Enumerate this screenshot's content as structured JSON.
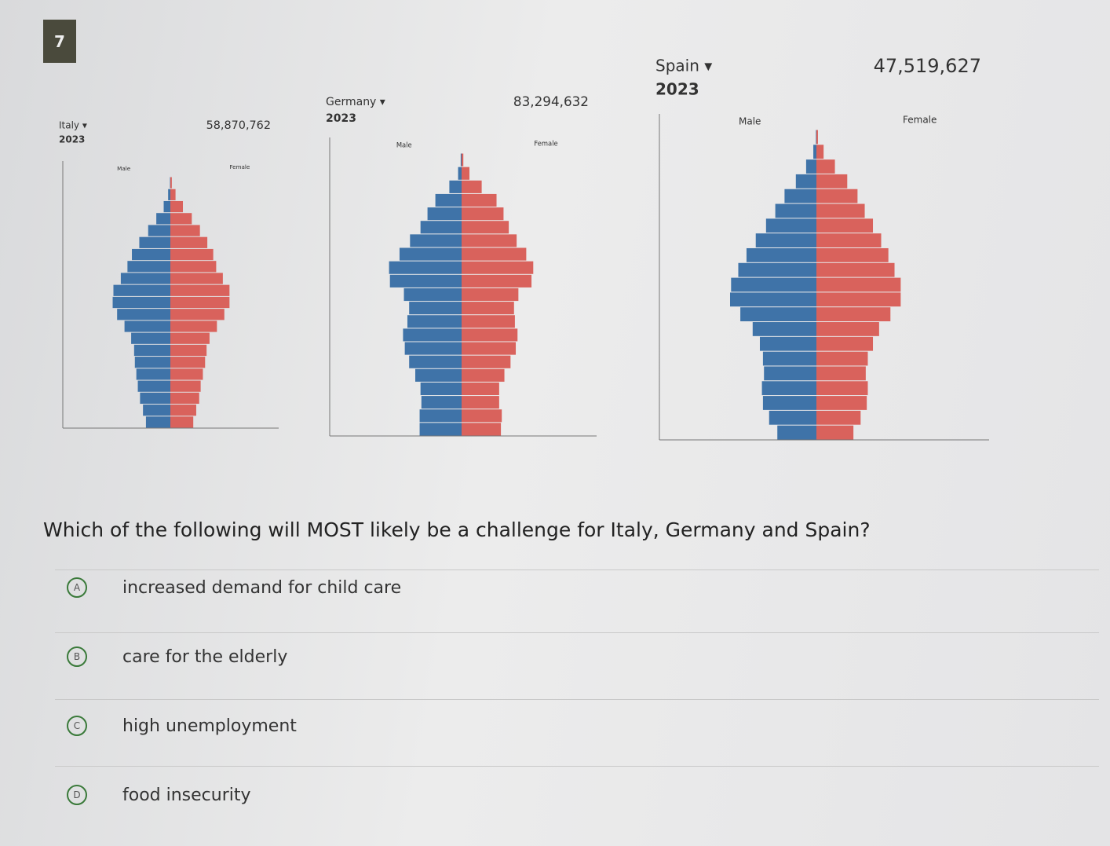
{
  "question_number": "7",
  "pyramids": [
    {
      "country": "Italy ▾",
      "year": "2023",
      "population": "58,870,762",
      "male_label": "Male",
      "female_label": "Female",
      "male": [
        3.3,
        3.7,
        4.1,
        4.4,
        4.6,
        4.8,
        4.9,
        5.3,
        6.2,
        7.2,
        7.8,
        7.7,
        6.7,
        5.8,
        5.2,
        4.2,
        3.0,
        1.9,
        0.9,
        0.3,
        0.05
      ],
      "female": [
        3.1,
        3.5,
        3.9,
        4.1,
        4.4,
        4.7,
        4.9,
        5.3,
        6.3,
        7.3,
        8.0,
        8.0,
        7.1,
        6.2,
        5.8,
        5.0,
        4.0,
        2.9,
        1.7,
        0.7,
        0.2
      ]
    },
    {
      "country": "Germany ▾",
      "year": "2023",
      "population": "83,294,632",
      "male_label": "Male",
      "female_label": "Female",
      "male": [
        4.8,
        4.8,
        4.6,
        4.7,
        5.3,
        6.0,
        6.5,
        6.7,
        6.2,
        6.0,
        6.6,
        8.2,
        8.3,
        7.1,
        5.9,
        4.7,
        3.9,
        3.0,
        1.4,
        0.4,
        0.1
      ],
      "female": [
        4.5,
        4.6,
        4.3,
        4.3,
        4.9,
        5.6,
        6.2,
        6.4,
        6.1,
        6.0,
        6.5,
        8.0,
        8.2,
        7.4,
        6.3,
        5.4,
        4.8,
        4.0,
        2.3,
        0.9,
        0.2
      ]
    },
    {
      "country": "Spain ▾",
      "year": "2023",
      "population": "47,519,627",
      "male_label": "Male",
      "female_label": "Female",
      "male": [
        3.8,
        4.6,
        5.2,
        5.3,
        5.1,
        5.2,
        5.5,
        6.2,
        7.4,
        8.4,
        8.3,
        7.6,
        6.8,
        5.9,
        4.9,
        4.0,
        3.1,
        2.0,
        1.0,
        0.3,
        0.05
      ],
      "female": [
        3.6,
        4.3,
        4.9,
        5.0,
        4.8,
        5.0,
        5.5,
        6.1,
        7.2,
        8.2,
        8.2,
        7.6,
        7.0,
        6.3,
        5.5,
        4.7,
        4.0,
        3.0,
        1.8,
        0.7,
        0.15
      ]
    }
  ],
  "question": "Which of the following will MOST likely be a challenge for Italy, Germany and Spain?",
  "options": [
    {
      "letter": "A",
      "text": "increased demand for child care"
    },
    {
      "letter": "B",
      "text": "care for the elderly"
    },
    {
      "letter": "C",
      "text": "high unemployment"
    },
    {
      "letter": "D",
      "text": "food insecurity"
    }
  ]
}
